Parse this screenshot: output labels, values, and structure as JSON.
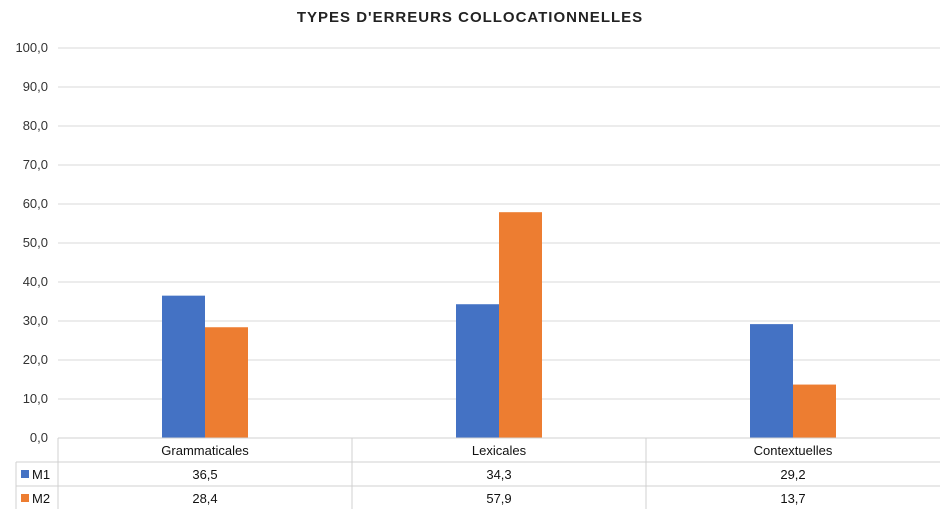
{
  "chart_data": {
    "type": "bar",
    "title": "TYPES D'ERREURS COLLOCATIONNELLES",
    "categories": [
      "Grammaticales",
      "Lexicales",
      "Contextuelles"
    ],
    "series": [
      {
        "name": "M1",
        "color": "#4472C4",
        "values": [
          36.5,
          34.3,
          29.2
        ],
        "labels": [
          "36,5",
          "34,3",
          "29,2"
        ]
      },
      {
        "name": "M2",
        "color": "#ED7D31",
        "values": [
          28.4,
          57.9,
          13.7
        ],
        "labels": [
          "28,4",
          "57,9",
          "13,7"
        ]
      }
    ],
    "y_ticks": [
      "0,0",
      "10,0",
      "20,0",
      "30,0",
      "40,0",
      "50,0",
      "60,0",
      "70,0",
      "80,0",
      "90,0",
      "100,0"
    ],
    "ylim": [
      0,
      100
    ],
    "grid": true,
    "legend": "data-table-left"
  }
}
